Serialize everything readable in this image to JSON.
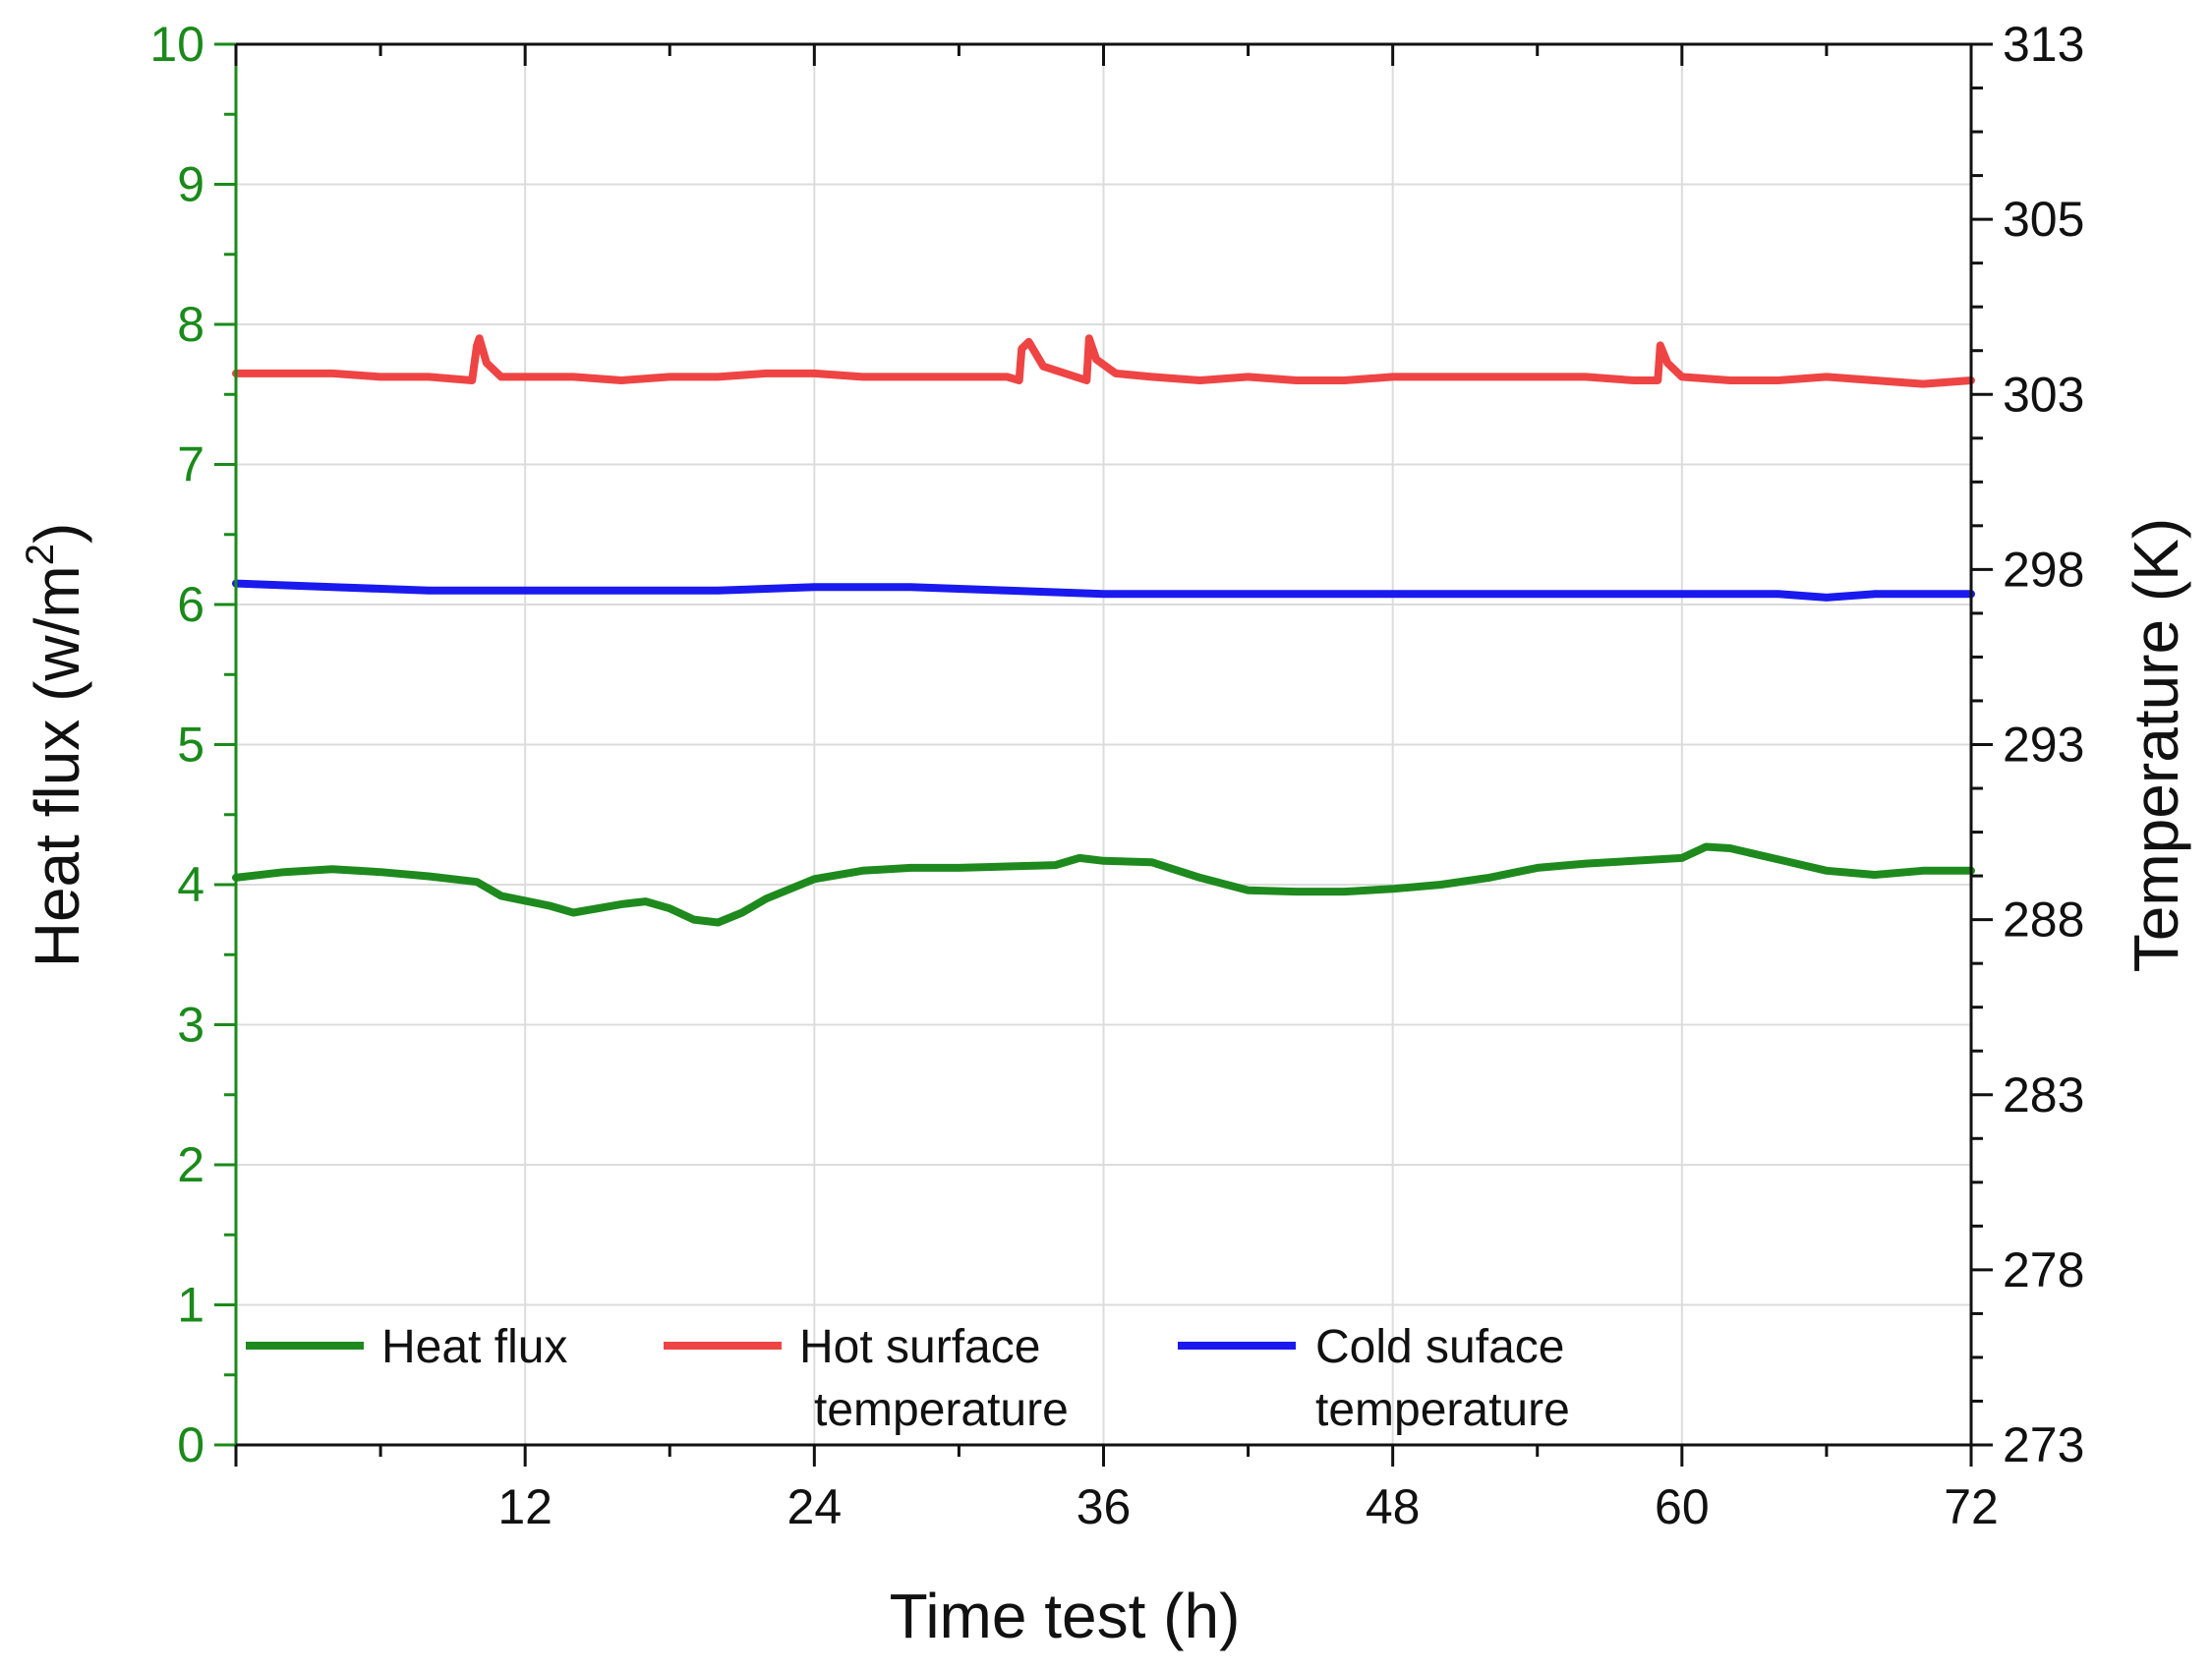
{
  "chart_data": {
    "type": "line",
    "title": "",
    "xlabel": "Time test (h)",
    "ylabel_left": "Heat flux (w/m²)",
    "ylabel_left_parts": {
      "main": "Heat flux (w/m",
      "sup": "2",
      "close": ")"
    },
    "ylabel_right": "Temperature (K)",
    "xlim": [
      0,
      72
    ],
    "ylim_left": [
      0,
      10
    ],
    "ylim_right": [
      273,
      313
    ],
    "x_ticks": [
      "12",
      "24",
      "36",
      "48",
      "60",
      "72"
    ],
    "x_tick_values": [
      12,
      24,
      36,
      48,
      60,
      72
    ],
    "y_left_ticks": [
      "0",
      "1",
      "2",
      "3",
      "4",
      "5",
      "6",
      "7",
      "8",
      "9",
      "10"
    ],
    "y_left_tick_values": [
      0,
      1,
      2,
      3,
      4,
      5,
      6,
      7,
      8,
      9,
      10
    ],
    "y_right_ticks": [
      "273",
      "278",
      "283",
      "288",
      "293",
      "298",
      "303",
      "305",
      "313"
    ],
    "y_right_tick_values": [
      273,
      278,
      283,
      288,
      293,
      298,
      303,
      305,
      313
    ],
    "grid": true,
    "legend_position": "bottom-left",
    "legend_rows": [
      [
        "Heat flux"
      ],
      [
        "Hot surface",
        "temperature"
      ],
      [
        "Cold suface",
        "temperature"
      ]
    ],
    "series": [
      {
        "name": "Heat flux",
        "axis": "left",
        "color": "#1e8a1e",
        "x": [
          0,
          2,
          4,
          6,
          8,
          10,
          11,
          13,
          14,
          16,
          17,
          18,
          19,
          20,
          21,
          22,
          24,
          26,
          28,
          30,
          32,
          34,
          35,
          36,
          38,
          40,
          42,
          44,
          46,
          48,
          50,
          52,
          54,
          56,
          58,
          60,
          61,
          62,
          64,
          66,
          68,
          70,
          72
        ],
        "values": [
          4.05,
          4.09,
          4.11,
          4.09,
          4.06,
          4.02,
          3.92,
          3.85,
          3.8,
          3.86,
          3.88,
          3.83,
          3.75,
          3.73,
          3.8,
          3.9,
          4.04,
          4.1,
          4.12,
          4.12,
          4.13,
          4.14,
          4.19,
          4.17,
          4.16,
          4.05,
          3.96,
          3.95,
          3.95,
          3.97,
          4.0,
          4.05,
          4.12,
          4.15,
          4.17,
          4.19,
          4.27,
          4.26,
          4.18,
          4.1,
          4.07,
          4.1,
          4.1
        ]
      },
      {
        "name": "Hot surface temperature",
        "axis": "right",
        "color": "#ef4444",
        "x": [
          0,
          2,
          4,
          6,
          8,
          9.8,
          10,
          10.1,
          10.4,
          11,
          12,
          14,
          16,
          18,
          20,
          22,
          24,
          26,
          28,
          30,
          32,
          32.5,
          32.6,
          32.9,
          33.5,
          35.3,
          35.4,
          35.7,
          36.5,
          38,
          40,
          42,
          44,
          46,
          48,
          50,
          52,
          54,
          56,
          58,
          59,
          59.1,
          59.4,
          60,
          62,
          64,
          66,
          68,
          70,
          72
        ],
        "values": [
          303.6,
          303.6,
          303.6,
          303.5,
          303.5,
          303.4,
          304.4,
          304.6,
          303.9,
          303.5,
          303.5,
          303.5,
          303.4,
          303.5,
          303.5,
          303.6,
          303.6,
          303.5,
          303.5,
          303.5,
          303.5,
          303.4,
          304.3,
          304.5,
          303.8,
          303.4,
          304.6,
          304.0,
          303.6,
          303.5,
          303.4,
          303.5,
          303.4,
          303.4,
          303.5,
          303.5,
          303.5,
          303.5,
          303.5,
          303.4,
          303.4,
          304.4,
          303.9,
          303.5,
          303.4,
          303.4,
          303.5,
          303.4,
          303.3,
          303.4
        ]
      },
      {
        "name": "Cold suface temperature",
        "axis": "right",
        "color": "#1a1aee",
        "x": [
          0,
          4,
          8,
          12,
          16,
          20,
          24,
          28,
          32,
          36,
          40,
          44,
          48,
          52,
          56,
          60,
          64,
          66,
          68,
          72
        ],
        "values": [
          297.6,
          297.5,
          297.4,
          297.4,
          297.4,
          297.4,
          297.5,
          297.5,
          297.4,
          297.3,
          297.3,
          297.3,
          297.3,
          297.3,
          297.3,
          297.3,
          297.3,
          297.2,
          297.3,
          297.3
        ]
      }
    ]
  }
}
